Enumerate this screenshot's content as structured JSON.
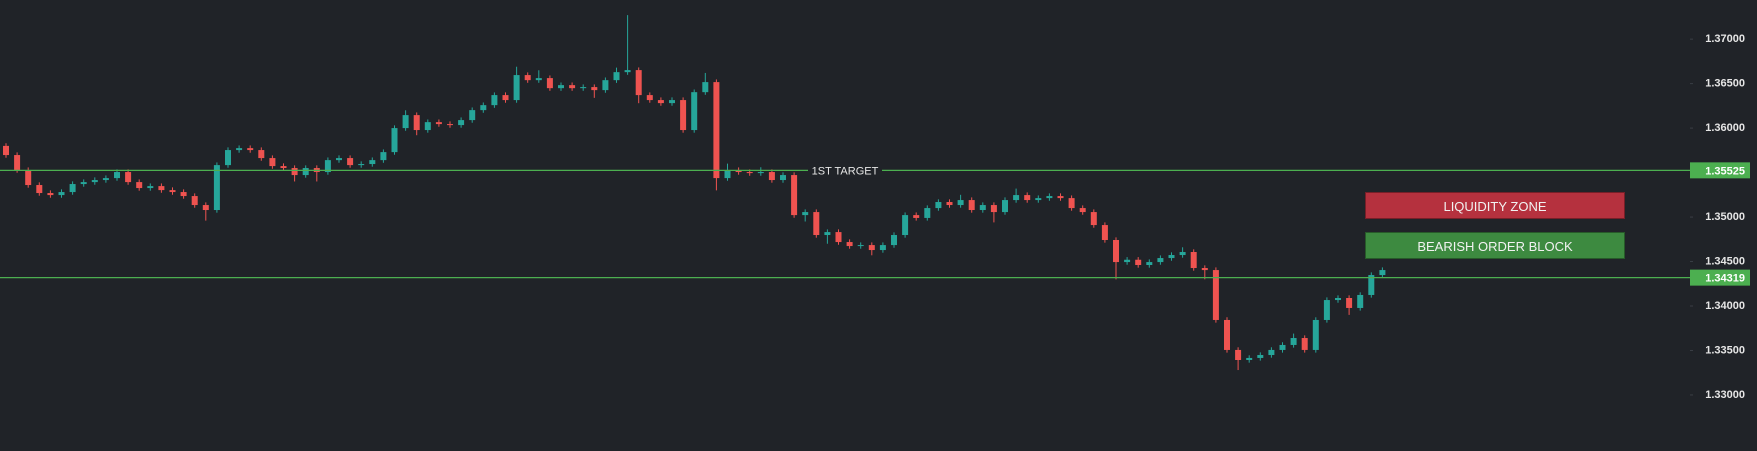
{
  "chart_data": {
    "type": "candlestick",
    "up_color": "#26a69a",
    "down_color": "#ef5350",
    "open": [
      1.358,
      1.35697,
      1.35528,
      1.3536,
      1.3527,
      1.35247,
      1.35281,
      1.35371,
      1.35393,
      1.35416,
      1.35438,
      1.35506,
      1.35393,
      1.35326,
      1.35348,
      1.35303,
      1.35281,
      1.35236,
      1.35135,
      1.35079,
      1.35584,
      1.35753,
      1.35775,
      1.35753,
      1.35663,
      1.35573,
      1.35551,
      1.35472,
      1.35551,
      1.35506,
      1.3564,
      1.35663,
      1.35584,
      1.35596,
      1.3564,
      1.3573,
      1.36,
      1.36146,
      1.35978,
      1.36067,
      1.36045,
      1.36034,
      1.3609,
      1.36202,
      1.36258,
      1.36371,
      1.36315,
      1.36596,
      1.36539,
      1.36562,
      1.36449,
      1.36483,
      1.36449,
      1.36461,
      1.36427,
      1.36539,
      1.36629,
      1.36652,
      1.36371,
      1.36315,
      1.36281,
      1.36315,
      1.35978,
      1.36404,
      1.36517,
      1.35438,
      1.35528,
      1.35506,
      1.35494,
      1.35506,
      1.35416,
      1.35472,
      1.35022,
      1.35056,
      1.34798,
      1.34831,
      1.34719,
      1.34674,
      1.34685,
      1.34629,
      1.34685,
      1.34798,
      1.35022,
      1.3499,
      1.35101,
      1.35169,
      1.35135,
      1.35191,
      1.35079,
      1.35135,
      1.35056,
      1.35191,
      1.35247,
      1.35191,
      1.35213,
      1.35236,
      1.35213,
      1.35101,
      1.35056,
      1.3491,
      1.34742,
      1.34494,
      1.3452,
      1.34461,
      1.34494,
      1.34539,
      1.34573,
      1.34607,
      1.34427,
      1.34404,
      1.33843,
      1.33506,
      1.33393,
      1.33416,
      1.33449,
      1.33506,
      1.33562,
      1.3364,
      1.33506,
      1.33843,
      1.34067,
      1.3409,
      1.33978,
      1.34124,
      1.34348
    ],
    "high": [
      1.3583,
      1.35727,
      1.35558,
      1.3539,
      1.353,
      1.35311,
      1.35401,
      1.35423,
      1.35446,
      1.35468,
      1.35536,
      1.35536,
      1.35423,
      1.35378,
      1.35378,
      1.35333,
      1.35311,
      1.35266,
      1.35165,
      1.35614,
      1.35783,
      1.35805,
      1.35805,
      1.35783,
      1.35693,
      1.35603,
      1.35581,
      1.35581,
      1.35581,
      1.3567,
      1.35693,
      1.35693,
      1.35626,
      1.3567,
      1.3576,
      1.3603,
      1.362,
      1.36176,
      1.36097,
      1.36097,
      1.36075,
      1.3612,
      1.36232,
      1.36288,
      1.36401,
      1.36401,
      1.3669,
      1.36626,
      1.3665,
      1.36592,
      1.36513,
      1.36513,
      1.36491,
      1.36491,
      1.36569,
      1.3668,
      1.3727,
      1.36682,
      1.36401,
      1.36345,
      1.36345,
      1.36345,
      1.36434,
      1.3662,
      1.36547,
      1.356,
      1.35558,
      1.35536,
      1.3556,
      1.35536,
      1.35502,
      1.35502,
      1.35086,
      1.35086,
      1.34861,
      1.34861,
      1.34749,
      1.34715,
      1.34715,
      1.34715,
      1.34828,
      1.35052,
      1.35052,
      1.35131,
      1.35199,
      1.35199,
      1.3525,
      1.35221,
      1.35165,
      1.35165,
      1.35221,
      1.3532,
      1.35277,
      1.35243,
      1.35266,
      1.35266,
      1.35243,
      1.35131,
      1.35086,
      1.3494,
      1.34772,
      1.3455,
      1.3455,
      1.34524,
      1.34569,
      1.34603,
      1.3466,
      1.34637,
      1.34457,
      1.34434,
      1.33873,
      1.33536,
      1.33446,
      1.33479,
      1.33536,
      1.33592,
      1.3369,
      1.3367,
      1.33873,
      1.34097,
      1.3412,
      1.3412,
      1.34154,
      1.34378,
      1.34434
    ],
    "low": [
      1.35667,
      1.35498,
      1.3533,
      1.3524,
      1.35217,
      1.35217,
      1.35251,
      1.35341,
      1.35363,
      1.35386,
      1.35408,
      1.35363,
      1.35296,
      1.35296,
      1.35273,
      1.35251,
      1.35206,
      1.35105,
      1.3496,
      1.35049,
      1.35554,
      1.35723,
      1.35723,
      1.35633,
      1.35543,
      1.35521,
      1.354,
      1.35442,
      1.354,
      1.35476,
      1.3561,
      1.35554,
      1.35554,
      1.35566,
      1.3561,
      1.357,
      1.3597,
      1.3592,
      1.35948,
      1.36015,
      1.36004,
      1.36004,
      1.3606,
      1.36172,
      1.36228,
      1.36285,
      1.36285,
      1.36509,
      1.36509,
      1.36419,
      1.36419,
      1.36419,
      1.36419,
      1.3634,
      1.36397,
      1.36509,
      1.36599,
      1.3628,
      1.36285,
      1.36251,
      1.36251,
      1.35948,
      1.35948,
      1.36374,
      1.353,
      1.35408,
      1.35476,
      1.35464,
      1.35464,
      1.35386,
      1.35386,
      1.34992,
      1.3495,
      1.34768,
      1.347,
      1.34689,
      1.34644,
      1.34644,
      1.3457,
      1.34599,
      1.34655,
      1.34768,
      1.3496,
      1.3496,
      1.35071,
      1.35105,
      1.35105,
      1.35049,
      1.35049,
      1.3494,
      1.35026,
      1.35161,
      1.35161,
      1.35161,
      1.35183,
      1.35183,
      1.35071,
      1.35026,
      1.3488,
      1.34712,
      1.343,
      1.34464,
      1.34431,
      1.34431,
      1.34464,
      1.34509,
      1.34543,
      1.34397,
      1.343,
      1.33813,
      1.33476,
      1.3328,
      1.33363,
      1.33386,
      1.33419,
      1.33476,
      1.33532,
      1.33476,
      1.33476,
      1.33813,
      1.34037,
      1.339,
      1.33948,
      1.34094,
      1.34318
    ],
    "close": [
      1.35697,
      1.35528,
      1.3536,
      1.3527,
      1.35247,
      1.35281,
      1.35371,
      1.35393,
      1.35416,
      1.35438,
      1.35506,
      1.35393,
      1.35326,
      1.35348,
      1.35303,
      1.35281,
      1.35236,
      1.35135,
      1.35079,
      1.35584,
      1.35753,
      1.35775,
      1.35753,
      1.35663,
      1.35573,
      1.35551,
      1.35472,
      1.35551,
      1.35506,
      1.3564,
      1.35663,
      1.35584,
      1.35596,
      1.3564,
      1.3573,
      1.36,
      1.36146,
      1.35978,
      1.36067,
      1.36045,
      1.36034,
      1.3609,
      1.36202,
      1.36258,
      1.36371,
      1.36315,
      1.36596,
      1.36539,
      1.36562,
      1.36449,
      1.36483,
      1.36449,
      1.36461,
      1.36427,
      1.36539,
      1.36629,
      1.36652,
      1.36371,
      1.36315,
      1.36281,
      1.36315,
      1.35978,
      1.36404,
      1.36517,
      1.35438,
      1.35528,
      1.35506,
      1.35494,
      1.35506,
      1.35416,
      1.35472,
      1.35022,
      1.35056,
      1.34798,
      1.34831,
      1.34719,
      1.34674,
      1.34685,
      1.34629,
      1.34685,
      1.34798,
      1.35022,
      1.3499,
      1.35101,
      1.35169,
      1.35135,
      1.35191,
      1.35079,
      1.35135,
      1.35056,
      1.35191,
      1.35247,
      1.35191,
      1.35213,
      1.35236,
      1.35213,
      1.35101,
      1.35056,
      1.3491,
      1.34742,
      1.34494,
      1.3452,
      1.34461,
      1.34494,
      1.34539,
      1.34573,
      1.34607,
      1.34427,
      1.34404,
      1.33843,
      1.33506,
      1.33393,
      1.33416,
      1.33449,
      1.33506,
      1.33562,
      1.3364,
      1.33506,
      1.33843,
      1.34067,
      1.3409,
      1.33978,
      1.34124,
      1.34348,
      1.34404
    ],
    "ylim": [
      1.3237,
      1.3744
    ],
    "yticks": [
      {
        "value": 1.37,
        "label": "1.37000"
      },
      {
        "value": 1.365,
        "label": "1.36500"
      },
      {
        "value": 1.36,
        "label": "1.36000"
      },
      {
        "value": 1.35,
        "label": "1.35000"
      },
      {
        "value": 1.345,
        "label": "1.34500"
      },
      {
        "value": 1.34,
        "label": "1.34000"
      },
      {
        "value": 1.335,
        "label": "1.33500"
      },
      {
        "value": 1.33,
        "label": "1.33000"
      }
    ],
    "levels": [
      {
        "value": 1.35525,
        "label": "1ST TARGET",
        "color": "#4caf50"
      },
      {
        "value": 1.34319,
        "color": "#4caf50"
      }
    ],
    "zones": [
      {
        "label": "LIQUIDITY ZONE",
        "color": "#b5313e"
      },
      {
        "label": "BEARISH ORDER BLOCK",
        "color": "#3d8a40"
      }
    ]
  }
}
